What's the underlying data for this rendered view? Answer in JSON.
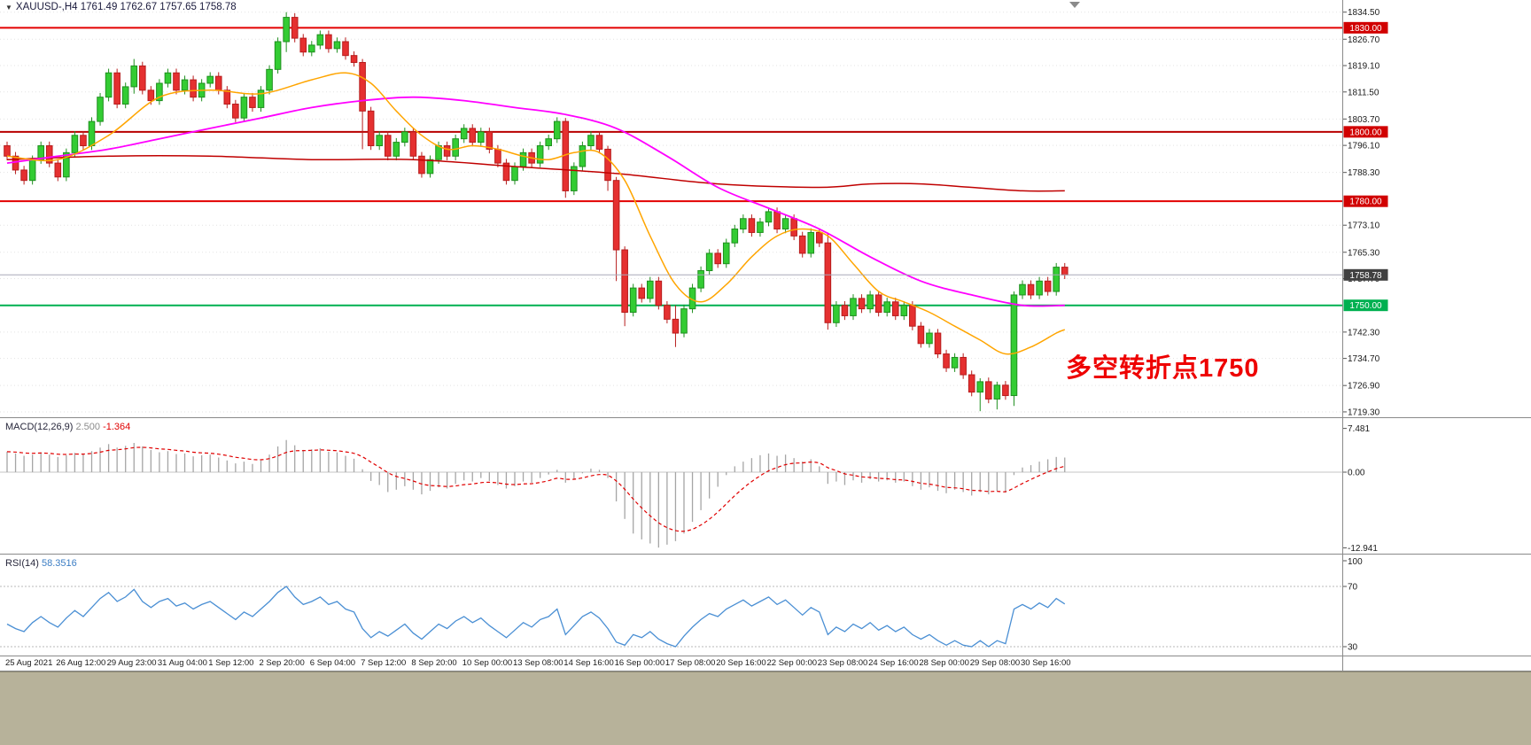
{
  "header": {
    "title": "XAUUSD-,H4  1761.49 1762.67 1757.65 1758.78"
  },
  "annotation": {
    "text": "多空转折点1750",
    "color": "#ee0000"
  },
  "colors": {
    "up": "#33cc33",
    "up_border": "#1f8f1f",
    "down": "#e53030",
    "down_border": "#b71c1c",
    "hline_red": "#e30000",
    "hline_dark_red": "#b80000",
    "hline_green": "#00b050",
    "ma_fast": "#ffa500",
    "ma_mid": "#ff00ff",
    "ma_slow": "#c00000",
    "macd_hist": "#a5a5a5",
    "macd_signal": "#e00000",
    "rsi_line": "#4a8fd4",
    "bid_line": "#a8a8b8",
    "bid_badge": "#404040",
    "grid": "#e3e3e3",
    "axis_text": "#1a1a1a"
  },
  "time_axis": [
    "25 Aug 2021",
    "26 Aug 12:00",
    "29 Aug 23:00",
    "31 Aug 04:00",
    "1 Sep 12:00",
    "2 Sep 20:00",
    "6 Sep 04:00",
    "7 Sep 12:00",
    "8 Sep 20:00",
    "10 Sep 00:00",
    "13 Sep 08:00",
    "14 Sep 16:00",
    "16 Sep 00:00",
    "17 Sep 08:00",
    "20 Sep 16:00",
    "22 Sep 00:00",
    "23 Sep 08:00",
    "24 Sep 16:00",
    "28 Sep 00:00",
    "29 Sep 08:00",
    "30 Sep 16:00"
  ],
  "chart_data": [
    {
      "type": "candlestick",
      "name": "main",
      "symbol": "XAUUSD-",
      "timeframe": "H4",
      "ohlc_header": {
        "open": "1761.49",
        "high": "1762.67",
        "low": "1757.65",
        "close": "1758.78"
      },
      "ylim": [
        1717.5,
        1838.0
      ],
      "yticks": [
        "1834.50",
        "1826.70",
        "1819.10",
        "1811.50",
        "1803.70",
        "1796.10",
        "1788.30",
        "1773.10",
        "1765.30",
        "1757.70",
        "1742.30",
        "1734.70",
        "1726.90",
        "1719.30"
      ],
      "open_first": 1796,
      "close": [
        1793,
        1789,
        1786,
        1792,
        1796,
        1791,
        1787,
        1794,
        1799,
        1796,
        1803,
        1810,
        1817,
        1808,
        1813,
        1819,
        1812,
        1809,
        1814,
        1817,
        1812,
        1815,
        1810,
        1814,
        1816,
        1812,
        1808,
        1804,
        1810,
        1807,
        1812,
        1818,
        1826,
        1833,
        1827,
        1823,
        1825,
        1828,
        1824,
        1826,
        1822,
        1820,
        1806,
        1796,
        1799,
        1793,
        1797,
        1800,
        1793,
        1788,
        1792,
        1796,
        1793,
        1798,
        1801,
        1797,
        1800,
        1795,
        1791,
        1786,
        1790,
        1794,
        1791,
        1796,
        1798,
        1803,
        1783,
        1790,
        1796,
        1799,
        1795,
        1786,
        1766,
        1748,
        1755,
        1752,
        1757,
        1750,
        1746,
        1742,
        1749,
        1755,
        1760,
        1765,
        1762,
        1768,
        1772,
        1775,
        1771,
        1774,
        1777,
        1772,
        1775,
        1770,
        1765,
        1771,
        1768,
        1745,
        1750,
        1747,
        1752,
        1749,
        1753,
        1748,
        1751,
        1747,
        1750,
        1744,
        1739,
        1742,
        1736,
        1732,
        1735,
        1730,
        1725,
        1728,
        1723,
        1727,
        1724,
        1753,
        1756,
        1753,
        1757,
        1754,
        1761,
        1758.78
      ],
      "wick_overrides": {
        "15": [
          1821,
          1811
        ],
        "33": [
          1834.5,
          1823
        ],
        "42": [
          1821,
          1795
        ],
        "66": [
          1804,
          1781
        ],
        "71": [
          1796,
          1783
        ],
        "72": [
          1787,
          1757
        ],
        "73": [
          1767,
          1744
        ],
        "79": [
          1750,
          1738
        ],
        "97": [
          1771,
          1743
        ],
        "115": [
          1729,
          1719.5
        ],
        "117": [
          1728,
          1720
        ],
        "119": [
          1754,
          1721
        ]
      },
      "hlines": [
        {
          "price": 1830.0,
          "color": "#e30000"
        },
        {
          "price": 1800.0,
          "color": "#b80000"
        },
        {
          "price": 1780.0,
          "color": "#e30000"
        },
        {
          "price": 1750.0,
          "color": "#00b050"
        }
      ],
      "current_price": 1758.78,
      "badges": [
        {
          "label": "1830.00",
          "price": 1830.0,
          "bg": "#d10000"
        },
        {
          "label": "1800.00",
          "price": 1800.0,
          "bg": "#d10000"
        },
        {
          "label": "1780.00",
          "price": 1780.0,
          "bg": "#d10000"
        },
        {
          "label": "1750.00",
          "price": 1750.0,
          "bg": "#00b050"
        },
        {
          "label": "1758.78",
          "price": 1758.78,
          "bg": "#404040"
        }
      ],
      "ma": [
        {
          "name": "ma-slow",
          "color": "#c00000",
          "width": 1.5,
          "points": [
            [
              0,
              1792
            ],
            [
              12,
              1793
            ],
            [
              24,
              1793
            ],
            [
              36,
              1792
            ],
            [
              48,
              1792
            ],
            [
              60,
              1790
            ],
            [
              72,
              1788
            ],
            [
              84,
              1785
            ],
            [
              96,
              1784
            ],
            [
              102,
              1785
            ],
            [
              108,
              1785
            ],
            [
              114,
              1784
            ],
            [
              120,
              1783
            ],
            [
              125,
              1783
            ]
          ]
        },
        {
          "name": "ma-mid",
          "color": "#ff00ff",
          "width": 1.8,
          "points": [
            [
              0,
              1791
            ],
            [
              6,
              1793
            ],
            [
              12,
              1795
            ],
            [
              18,
              1798
            ],
            [
              24,
              1801
            ],
            [
              30,
              1804
            ],
            [
              36,
              1807
            ],
            [
              42,
              1809
            ],
            [
              48,
              1810
            ],
            [
              54,
              1809
            ],
            [
              60,
              1807
            ],
            [
              66,
              1805
            ],
            [
              72,
              1801
            ],
            [
              78,
              1793
            ],
            [
              84,
              1784
            ],
            [
              90,
              1778
            ],
            [
              96,
              1772
            ],
            [
              102,
              1764
            ],
            [
              108,
              1757
            ],
            [
              114,
              1753
            ],
            [
              120,
              1750
            ],
            [
              125,
              1750
            ]
          ]
        },
        {
          "name": "ma-fast",
          "color": "#ffa500",
          "width": 1.5,
          "points": [
            [
              0,
              1793
            ],
            [
              6,
              1792
            ],
            [
              12,
              1799
            ],
            [
              18,
              1810
            ],
            [
              24,
              1812
            ],
            [
              30,
              1811
            ],
            [
              36,
              1815
            ],
            [
              40,
              1817
            ],
            [
              43,
              1814
            ],
            [
              46,
              1806
            ],
            [
              49,
              1799
            ],
            [
              52,
              1795
            ],
            [
              55,
              1796
            ],
            [
              58,
              1795
            ],
            [
              61,
              1793
            ],
            [
              64,
              1792
            ],
            [
              67,
              1794
            ],
            [
              70,
              1794
            ],
            [
              73,
              1786
            ],
            [
              76,
              1770
            ],
            [
              79,
              1756
            ],
            [
              82,
              1751
            ],
            [
              85,
              1756
            ],
            [
              88,
              1764
            ],
            [
              91,
              1770
            ],
            [
              94,
              1772
            ],
            [
              97,
              1770
            ],
            [
              100,
              1762
            ],
            [
              103,
              1754
            ],
            [
              106,
              1751
            ],
            [
              109,
              1748
            ],
            [
              112,
              1744
            ],
            [
              115,
              1740
            ],
            [
              118,
              1736
            ],
            [
              121,
              1738
            ],
            [
              124,
              1742
            ],
            [
              125,
              1743
            ]
          ]
        }
      ]
    },
    {
      "type": "bar",
      "name": "macd",
      "label": "MACD(12,26,9)",
      "value_main": "2.500",
      "value_signal": "-1.364",
      "yticks": [
        "7.481",
        "0.00",
        "-12.941"
      ],
      "values": [
        3.5,
        3.2,
        2.8,
        3,
        3.4,
        3,
        2.6,
        2.9,
        3.3,
        3.1,
        3.6,
        4.2,
        4.8,
        4.2,
        4.5,
        5,
        4.4,
        3.8,
        3.4,
        3.6,
        3.1,
        3.2,
        2.7,
        2.9,
        3,
        2.5,
        2,
        1.5,
        1.8,
        1.4,
        2,
        3,
        4.4,
        5.5,
        4.6,
        3.8,
        3.9,
        4.1,
        3.5,
        3.4,
        2.8,
        2.3,
        0.5,
        -1.5,
        -2.2,
        -3.4,
        -3,
        -2.4,
        -3,
        -3.8,
        -3.2,
        -2.6,
        -2.8,
        -2,
        -1.4,
        -1.6,
        -1,
        -1.5,
        -2.2,
        -2.8,
        -2.4,
        -1.6,
        -1.8,
        -1,
        -0.4,
        0.4,
        -1.8,
        -1.2,
        -0.2,
        0.6,
        0.4,
        -1,
        -5,
        -8,
        -10.5,
        -11.5,
        -12.2,
        -12.9,
        -12.4,
        -11.8,
        -10.5,
        -8.5,
        -6.5,
        -4.5,
        -2.5,
        -0.5,
        1,
        1.8,
        2.4,
        2.9,
        3.2,
        2.8,
        3,
        2.4,
        1.8,
        2.2,
        1,
        -2,
        -1.6,
        -2.2,
        -1.4,
        -1.8,
        -1.2,
        -1.6,
        -1.4,
        -1.8,
        -1.6,
        -2.4,
        -3,
        -2.6,
        -3.2,
        -3.6,
        -3,
        -3.4,
        -4,
        -3.4,
        -3.8,
        -3.2,
        -3.5,
        -0.5,
        0.8,
        1.2,
        1.8,
        2.2,
        2.6,
        2.5
      ]
    },
    {
      "type": "line",
      "name": "rsi",
      "label": "RSI(14)",
      "value": "58.3516",
      "axis_labels": [
        "100",
        "70",
        "30"
      ],
      "levels": [
        70,
        30
      ],
      "values": [
        45,
        42,
        40,
        46,
        50,
        46,
        43,
        49,
        54,
        50,
        56,
        62,
        66,
        60,
        63,
        68,
        60,
        56,
        60,
        62,
        57,
        59,
        55,
        58,
        60,
        56,
        52,
        48,
        53,
        50,
        55,
        60,
        66,
        70,
        63,
        58,
        60,
        63,
        58,
        60,
        55,
        53,
        42,
        36,
        40,
        37,
        41,
        45,
        39,
        35,
        40,
        45,
        42,
        47,
        50,
        46,
        49,
        44,
        40,
        36,
        41,
        46,
        43,
        48,
        50,
        55,
        38,
        44,
        50,
        53,
        49,
        42,
        33,
        31,
        38,
        36,
        40,
        35,
        32,
        30,
        37,
        43,
        48,
        52,
        50,
        55,
        58,
        61,
        57,
        60,
        63,
        58,
        61,
        56,
        51,
        56,
        53,
        38,
        43,
        40,
        45,
        42,
        46,
        41,
        44,
        40,
        43,
        38,
        35,
        38,
        34,
        31,
        34,
        31,
        30,
        34,
        30,
        34,
        32,
        55,
        58,
        55,
        59,
        56,
        62,
        58.35
      ]
    }
  ]
}
